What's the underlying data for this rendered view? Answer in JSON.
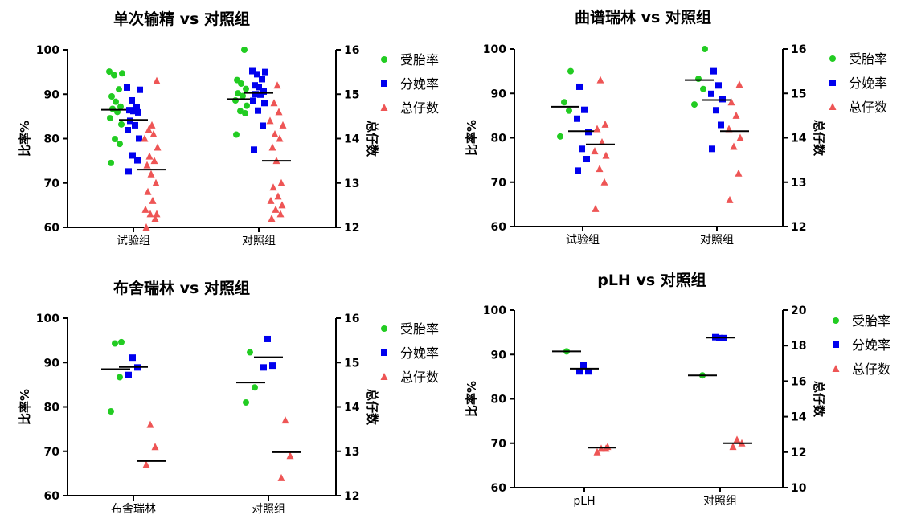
{
  "colors": {
    "series1": "#22cc22",
    "series2": "#0000ee",
    "series3": "#ee5555",
    "median": "#000000",
    "axis": "#000000"
  },
  "chart_data": [
    {
      "type": "scatter",
      "title": "单次输精 vs 对照组",
      "categories": [
        "试验组",
        "对照组"
      ],
      "ylabel_left": "比率%",
      "ylabel_right": "总仔数",
      "ylim_left": [
        60,
        100
      ],
      "yticks_left": [
        60,
        70,
        80,
        90,
        100
      ],
      "ylim_right": [
        12,
        16
      ],
      "yticks_right": [
        12,
        13,
        14,
        15,
        16
      ],
      "legend": [
        "受胎率",
        "分娩率",
        "总仔数"
      ],
      "series": [
        {
          "name": "受胎率",
          "axis": "left",
          "groups": [
            [
              74.5,
              78.8,
              79.9,
              83.2,
              84.6,
              86.0,
              86.7,
              87.2,
              88.3,
              89.5,
              91.1,
              94.3,
              94.7,
              95.1
            ],
            [
              80.9,
              85.7,
              86.2,
              87.4,
              88.6,
              89.6,
              90.2,
              91.2,
              92.4,
              93.2,
              100.0
            ]
          ],
          "medians": [
            86.5,
            88.9
          ]
        },
        {
          "name": "分娩率",
          "axis": "left",
          "groups": [
            [
              72.6,
              75.1,
              76.2,
              80.0,
              81.9,
              83.0,
              84.0,
              85.9,
              86.2,
              86.4,
              87.1,
              88.6,
              91.0,
              91.5
            ],
            [
              77.5,
              82.9,
              86.3,
              88.0,
              88.5,
              89.9,
              90.0,
              90.6,
              91.6,
              92.0,
              93.4,
              94.5,
              95.0,
              95.2
            ]
          ],
          "medians": [
            84.2,
            90.3
          ]
        },
        {
          "name": "总仔数",
          "axis": "right",
          "groups": [
            [
              12.0,
              12.2,
              12.3,
              12.3,
              12.4,
              12.6,
              12.8,
              13.0,
              13.2,
              13.4,
              13.5,
              13.6,
              13.8,
              14.0,
              14.1,
              14.2,
              14.3,
              15.3
            ],
            [
              12.2,
              12.3,
              12.4,
              12.5,
              12.6,
              12.7,
              12.9,
              13.0,
              13.5,
              13.8,
              14.0,
              14.1,
              14.3,
              14.4,
              14.6,
              14.8,
              15.2
            ]
          ],
          "medians": [
            13.3,
            13.5
          ]
        }
      ]
    },
    {
      "type": "scatter",
      "title": "曲谱瑞林 vs 对照组",
      "categories": [
        "试验组",
        "对照组"
      ],
      "ylabel_left": "比率%",
      "ylabel_right": "总仔数",
      "ylim_left": [
        60,
        100
      ],
      "yticks_left": [
        60,
        70,
        80,
        90,
        100
      ],
      "ylim_right": [
        12,
        16
      ],
      "yticks_right": [
        12,
        13,
        14,
        15,
        16
      ],
      "legend": [
        "受胎率",
        "分娩率",
        "总仔数"
      ],
      "series": [
        {
          "name": "受胎率",
          "axis": "left",
          "groups": [
            [
              80.3,
              86.1,
              88.0,
              95.0
            ],
            [
              87.5,
              91.0,
              93.3,
              100.0
            ]
          ],
          "medians": [
            87.0,
            93.0
          ]
        },
        {
          "name": "分娩率",
          "axis": "left",
          "groups": [
            [
              72.6,
              75.2,
              77.5,
              81.3,
              84.3,
              86.3,
              91.5
            ],
            [
              77.5,
              82.9,
              86.2,
              88.7,
              89.9,
              91.8,
              95.0
            ]
          ],
          "medians": [
            81.5,
            88.5
          ]
        },
        {
          "name": "总仔数",
          "axis": "right",
          "groups": [
            [
              12.4,
              13.0,
              13.3,
              13.6,
              13.7,
              13.9,
              14.2,
              14.3,
              15.3
            ],
            [
              12.6,
              13.2,
              13.8,
              14.0,
              14.2,
              14.5,
              14.8,
              15.2
            ]
          ],
          "medians": [
            13.85,
            14.15
          ]
        }
      ]
    },
    {
      "type": "scatter",
      "title": "布舍瑞林 vs 对照组",
      "categories": [
        "布舍瑞林",
        "对照组"
      ],
      "ylabel_left": "比率%",
      "ylabel_right": "总仔数",
      "ylim_left": [
        60,
        100
      ],
      "yticks_left": [
        60,
        70,
        80,
        90,
        100
      ],
      "ylim_right": [
        12,
        16
      ],
      "yticks_right": [
        12,
        13,
        14,
        15,
        16
      ],
      "legend": [
        "受胎率",
        "分娩率",
        "总仔数"
      ],
      "series": [
        {
          "name": "受胎率",
          "axis": "left",
          "groups": [
            [
              79.0,
              86.7,
              94.3,
              94.6
            ],
            [
              81.0,
              84.4,
              92.3
            ]
          ],
          "medians": [
            88.5,
            85.5
          ]
        },
        {
          "name": "分娩率",
          "axis": "left",
          "groups": [
            [
              87.2,
              88.9,
              91.1
            ],
            [
              88.9,
              89.3,
              95.3
            ]
          ],
          "medians": [
            89.0,
            91.2
          ]
        },
        {
          "name": "总仔数",
          "axis": "right",
          "groups": [
            [
              12.7,
              13.1,
              13.6
            ],
            [
              12.4,
              12.9,
              13.7
            ]
          ],
          "medians": [
            12.78,
            12.98
          ]
        }
      ]
    },
    {
      "type": "scatter",
      "title": "pLH vs 对照组",
      "categories": [
        "pLH",
        "对照组"
      ],
      "ylabel_left": "比率%",
      "ylabel_right": "总仔数",
      "ylim_left": [
        60,
        100
      ],
      "yticks_left": [
        60,
        70,
        80,
        90,
        100
      ],
      "ylim_right": [
        10,
        20
      ],
      "yticks_right": [
        10,
        12,
        14,
        16,
        18,
        20
      ],
      "legend": [
        "受胎率",
        "分娩率",
        "总仔数"
      ],
      "series": [
        {
          "name": "受胎率",
          "axis": "left",
          "groups": [
            [
              90.7
            ],
            [
              85.3
            ]
          ],
          "medians": [
            90.7,
            85.3
          ]
        },
        {
          "name": "分娩率",
          "axis": "left",
          "groups": [
            [
              86.2,
              86.2,
              87.6
            ],
            [
              93.9,
              93.7,
              93.7
            ]
          ],
          "medians": [
            86.8,
            93.8
          ]
        },
        {
          "name": "总仔数",
          "axis": "right",
          "groups": [
            [
              12.0,
              12.2,
              12.2,
              12.3
            ],
            [
              12.3,
              12.5,
              12.7
            ]
          ],
          "medians": [
            12.25,
            12.5
          ]
        }
      ]
    }
  ]
}
